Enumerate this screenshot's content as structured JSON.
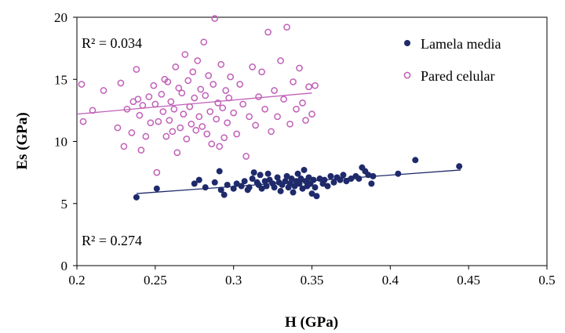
{
  "chart_data": {
    "type": "scatter",
    "xlabel": "H  (GPa)",
    "ylabel": "Es (GPa)",
    "xlim": [
      0.2,
      0.5
    ],
    "ylim": [
      0,
      20
    ],
    "x_ticks": [
      "0.2",
      "0.25",
      "0.3",
      "0.35",
      "0.4",
      "0.45",
      "0.5"
    ],
    "y_ticks": [
      "0",
      "5",
      "10",
      "15",
      "20"
    ],
    "grid": false,
    "legend_position": "top-right",
    "annotations": {
      "r2_pared": "R² = 0.034",
      "r2_lamela": "R² = 0.274"
    },
    "series": [
      {
        "name": "Lamela media",
        "marker": "filled-circle",
        "color": "#1f2a6b",
        "trend": [
          [
            0.238,
            5.8
          ],
          [
            0.445,
            7.7
          ]
        ],
        "points": [
          [
            0.238,
            5.5
          ],
          [
            0.251,
            6.2
          ],
          [
            0.275,
            6.6
          ],
          [
            0.278,
            6.9
          ],
          [
            0.282,
            6.3
          ],
          [
            0.288,
            6.7
          ],
          [
            0.291,
            7.6
          ],
          [
            0.292,
            6.1
          ],
          [
            0.294,
            5.7
          ],
          [
            0.296,
            6.5
          ],
          [
            0.3,
            6.2
          ],
          [
            0.302,
            6.6
          ],
          [
            0.305,
            6.4
          ],
          [
            0.307,
            6.8
          ],
          [
            0.309,
            6.1
          ],
          [
            0.31,
            6.3
          ],
          [
            0.312,
            7.0
          ],
          [
            0.313,
            7.5
          ],
          [
            0.315,
            6.7
          ],
          [
            0.316,
            6.5
          ],
          [
            0.317,
            7.3
          ],
          [
            0.318,
            6.2
          ],
          [
            0.32,
            6.8
          ],
          [
            0.321,
            6.4
          ],
          [
            0.322,
            7.4
          ],
          [
            0.323,
            6.9
          ],
          [
            0.325,
            6.6
          ],
          [
            0.326,
            6.3
          ],
          [
            0.328,
            7.1
          ],
          [
            0.329,
            6.7
          ],
          [
            0.33,
            6.0
          ],
          [
            0.331,
            6.5
          ],
          [
            0.333,
            6.8
          ],
          [
            0.334,
            7.2
          ],
          [
            0.335,
            6.3
          ],
          [
            0.336,
            6.6
          ],
          [
            0.337,
            7.0
          ],
          [
            0.338,
            5.9
          ],
          [
            0.339,
            6.4
          ],
          [
            0.34,
            6.8
          ],
          [
            0.341,
            7.4
          ],
          [
            0.342,
            6.6
          ],
          [
            0.343,
            7.0
          ],
          [
            0.344,
            6.2
          ],
          [
            0.345,
            7.7
          ],
          [
            0.346,
            6.8
          ],
          [
            0.347,
            6.4
          ],
          [
            0.348,
            7.1
          ],
          [
            0.349,
            6.6
          ],
          [
            0.35,
            5.8
          ],
          [
            0.351,
            6.9
          ],
          [
            0.352,
            6.3
          ],
          [
            0.353,
            5.6
          ],
          [
            0.355,
            7.0
          ],
          [
            0.357,
            6.6
          ],
          [
            0.358,
            6.9
          ],
          [
            0.36,
            6.4
          ],
          [
            0.362,
            7.2
          ],
          [
            0.364,
            6.7
          ],
          [
            0.366,
            7.1
          ],
          [
            0.368,
            6.9
          ],
          [
            0.37,
            7.3
          ],
          [
            0.372,
            6.8
          ],
          [
            0.375,
            7.0
          ],
          [
            0.378,
            7.2
          ],
          [
            0.38,
            7.0
          ],
          [
            0.382,
            7.9
          ],
          [
            0.384,
            7.6
          ],
          [
            0.386,
            7.3
          ],
          [
            0.388,
            6.6
          ],
          [
            0.389,
            7.2
          ],
          [
            0.405,
            7.4
          ],
          [
            0.416,
            8.5
          ],
          [
            0.444,
            8.0
          ]
        ]
      },
      {
        "name": "Pared celular",
        "marker": "open-circle",
        "color": "#c060b8",
        "trend": [
          [
            0.2,
            12.2
          ],
          [
            0.35,
            13.9
          ]
        ],
        "points": [
          [
            0.203,
            14.6
          ],
          [
            0.204,
            11.6
          ],
          [
            0.21,
            12.5
          ],
          [
            0.217,
            14.1
          ],
          [
            0.226,
            11.1
          ],
          [
            0.228,
            14.7
          ],
          [
            0.23,
            9.6
          ],
          [
            0.232,
            12.6
          ],
          [
            0.235,
            10.7
          ],
          [
            0.236,
            13.2
          ],
          [
            0.238,
            15.8
          ],
          [
            0.239,
            13.4
          ],
          [
            0.24,
            12.1
          ],
          [
            0.241,
            9.3
          ],
          [
            0.242,
            12.9
          ],
          [
            0.244,
            10.4
          ],
          [
            0.246,
            13.6
          ],
          [
            0.247,
            11.5
          ],
          [
            0.249,
            14.5
          ],
          [
            0.25,
            13.0
          ],
          [
            0.251,
            7.5
          ],
          [
            0.252,
            11.6
          ],
          [
            0.254,
            13.8
          ],
          [
            0.255,
            12.4
          ],
          [
            0.256,
            15.0
          ],
          [
            0.257,
            10.4
          ],
          [
            0.258,
            14.8
          ],
          [
            0.259,
            11.7
          ],
          [
            0.26,
            13.2
          ],
          [
            0.261,
            10.8
          ],
          [
            0.262,
            12.6
          ],
          [
            0.263,
            16.0
          ],
          [
            0.264,
            9.1
          ],
          [
            0.265,
            14.3
          ],
          [
            0.266,
            11.1
          ],
          [
            0.267,
            13.9
          ],
          [
            0.268,
            12.2
          ],
          [
            0.269,
            17.0
          ],
          [
            0.27,
            10.2
          ],
          [
            0.271,
            14.9
          ],
          [
            0.272,
            12.8
          ],
          [
            0.273,
            11.4
          ],
          [
            0.274,
            15.6
          ],
          [
            0.275,
            13.5
          ],
          [
            0.276,
            10.9
          ],
          [
            0.277,
            16.5
          ],
          [
            0.278,
            12.0
          ],
          [
            0.279,
            14.2
          ],
          [
            0.28,
            11.2
          ],
          [
            0.281,
            18.0
          ],
          [
            0.282,
            13.7
          ],
          [
            0.283,
            10.6
          ],
          [
            0.284,
            15.3
          ],
          [
            0.285,
            12.4
          ],
          [
            0.286,
            9.8
          ],
          [
            0.287,
            14.6
          ],
          [
            0.288,
            19.9
          ],
          [
            0.289,
            11.8
          ],
          [
            0.29,
            13.1
          ],
          [
            0.291,
            9.6
          ],
          [
            0.292,
            16.2
          ],
          [
            0.293,
            12.7
          ],
          [
            0.294,
            10.3
          ],
          [
            0.295,
            14.1
          ],
          [
            0.296,
            11.5
          ],
          [
            0.297,
            13.5
          ],
          [
            0.298,
            15.2
          ],
          [
            0.3,
            12.3
          ],
          [
            0.302,
            10.6
          ],
          [
            0.304,
            14.6
          ],
          [
            0.306,
            13.0
          ],
          [
            0.308,
            8.8
          ],
          [
            0.31,
            12.0
          ],
          [
            0.312,
            16.0
          ],
          [
            0.314,
            11.3
          ],
          [
            0.316,
            13.6
          ],
          [
            0.318,
            15.6
          ],
          [
            0.32,
            12.6
          ],
          [
            0.322,
            18.8
          ],
          [
            0.324,
            10.8
          ],
          [
            0.326,
            14.1
          ],
          [
            0.328,
            12.0
          ],
          [
            0.33,
            16.5
          ],
          [
            0.332,
            13.4
          ],
          [
            0.334,
            19.2
          ],
          [
            0.336,
            11.4
          ],
          [
            0.338,
            14.8
          ],
          [
            0.34,
            12.6
          ],
          [
            0.342,
            15.9
          ],
          [
            0.344,
            13.1
          ],
          [
            0.346,
            11.7
          ],
          [
            0.348,
            14.4
          ],
          [
            0.35,
            12.2
          ],
          [
            0.352,
            14.5
          ]
        ]
      }
    ]
  }
}
